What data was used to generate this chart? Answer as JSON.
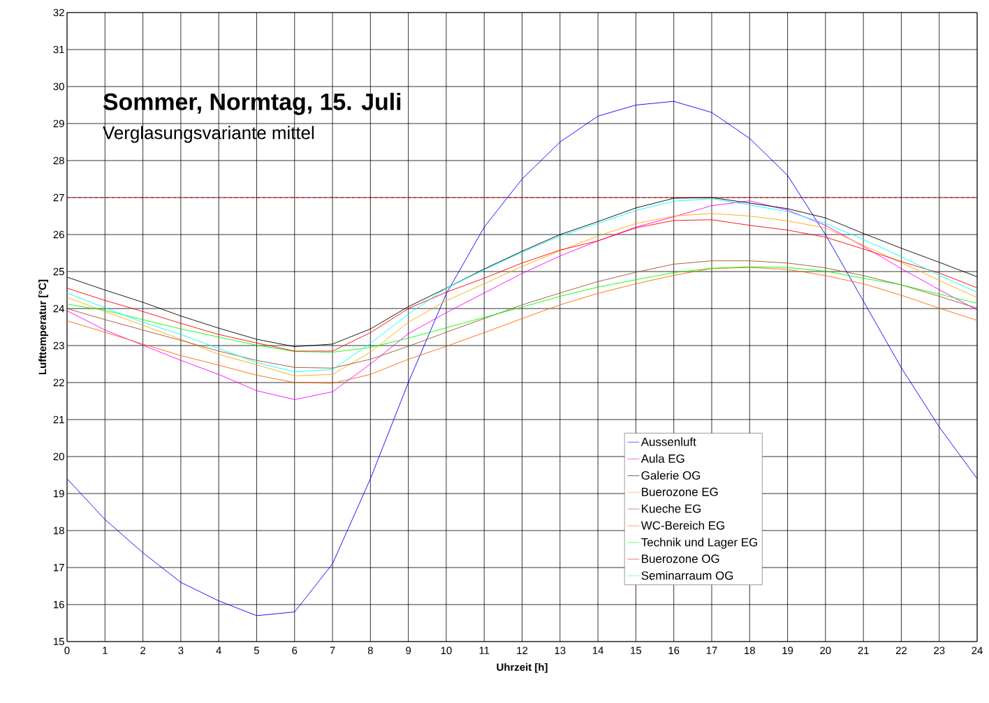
{
  "chart_data": {
    "type": "line",
    "title": "Sommer, Normtag, 15. Juli",
    "subtitle": "Verglasungsvariante mittel",
    "xlabel": "Uhrzeit [h]",
    "ylabel": "Lufttemperatur [°C]",
    "x": [
      0,
      1,
      2,
      3,
      4,
      5,
      6,
      7,
      8,
      9,
      10,
      11,
      12,
      13,
      14,
      15,
      16,
      17,
      18,
      19,
      20,
      21,
      22,
      23,
      24
    ],
    "series": [
      {
        "name": "Aussenluft",
        "color": "#0000ff",
        "values": [
          19.4,
          18.3,
          17.4,
          16.6,
          16.1,
          15.7,
          15.8,
          17.1,
          19.4,
          22.0,
          24.4,
          26.2,
          27.5,
          28.5,
          29.2,
          29.5,
          29.6,
          29.3,
          28.6,
          27.6,
          26.0,
          24.2,
          22.4,
          20.8,
          19.4
        ]
      },
      {
        "name": "Aula EG",
        "color": "#ff00ff",
        "values": [
          23.94,
          23.42,
          23.01,
          22.6,
          22.22,
          21.78,
          21.54,
          21.75,
          22.5,
          23.32,
          23.89,
          24.42,
          24.95,
          25.42,
          25.83,
          26.2,
          26.48,
          26.78,
          26.91,
          26.66,
          26.25,
          25.68,
          25.08,
          24.51,
          23.96
        ]
      },
      {
        "name": "Galerie OG",
        "color": "#000000",
        "values": [
          24.85,
          24.5,
          24.17,
          23.8,
          23.47,
          23.17,
          22.97,
          23.04,
          23.45,
          24.05,
          24.55,
          25.07,
          25.55,
          26.0,
          26.35,
          26.72,
          26.98,
          27.0,
          26.85,
          26.7,
          26.45,
          26.03,
          25.63,
          25.25,
          24.86
        ]
      },
      {
        "name": "Buerozone EG",
        "color": "#ffa500",
        "values": [
          24.3,
          23.92,
          23.55,
          23.17,
          22.76,
          22.48,
          22.18,
          22.22,
          22.82,
          23.63,
          24.21,
          24.67,
          25.14,
          25.56,
          25.96,
          26.3,
          26.5,
          26.57,
          26.5,
          26.37,
          26.18,
          25.71,
          25.24,
          24.76,
          24.3
        ]
      },
      {
        "name": "Kueche EG",
        "color": "#a0522d",
        "values": [
          24.0,
          23.7,
          23.42,
          23.14,
          22.85,
          22.6,
          22.41,
          22.39,
          22.63,
          22.98,
          23.36,
          23.73,
          24.1,
          24.42,
          24.73,
          24.98,
          25.2,
          25.29,
          25.29,
          25.23,
          25.1,
          24.89,
          24.64,
          24.33,
          24.01
        ]
      },
      {
        "name": "WC-Bereich EG",
        "color": "#ff6600",
        "values": [
          23.67,
          23.36,
          23.04,
          22.73,
          22.47,
          22.2,
          22.0,
          21.98,
          22.22,
          22.63,
          22.98,
          23.35,
          23.73,
          24.1,
          24.41,
          24.67,
          24.9,
          25.08,
          25.11,
          25.06,
          24.89,
          24.67,
          24.36,
          24.01,
          23.68
        ]
      },
      {
        "name": "Technik und Lager EG",
        "color": "#00ff00",
        "values": [
          24.12,
          23.95,
          23.7,
          23.45,
          23.23,
          23.01,
          22.84,
          22.82,
          22.95,
          23.2,
          23.48,
          23.76,
          24.04,
          24.33,
          24.58,
          24.78,
          24.97,
          25.09,
          25.13,
          25.11,
          25.01,
          24.82,
          24.64,
          24.39,
          24.14
        ]
      },
      {
        "name": "Buerozone OG",
        "color": "#ff0000",
        "values": [
          24.55,
          24.22,
          23.92,
          23.6,
          23.3,
          23.07,
          22.85,
          22.85,
          23.35,
          24.0,
          24.44,
          24.82,
          25.23,
          25.58,
          25.83,
          26.18,
          26.38,
          26.4,
          26.25,
          26.12,
          25.93,
          25.61,
          25.27,
          24.96,
          24.56
        ]
      },
      {
        "name": "Seminarraum OG",
        "color": "#00ffff",
        "values": [
          24.42,
          24.02,
          23.63,
          23.3,
          22.92,
          22.54,
          22.29,
          22.35,
          23.06,
          23.85,
          24.55,
          25.05,
          25.52,
          25.96,
          26.3,
          26.65,
          26.9,
          26.97,
          26.8,
          26.62,
          26.3,
          25.87,
          25.4,
          24.9,
          24.44
        ]
      }
    ],
    "xlim": [
      0,
      24
    ],
    "ylim": [
      15,
      32
    ],
    "xticks": [
      0,
      1,
      2,
      3,
      4,
      5,
      6,
      7,
      8,
      9,
      10,
      11,
      12,
      13,
      14,
      15,
      16,
      17,
      18,
      19,
      20,
      21,
      22,
      23,
      24
    ],
    "yticks": [
      15,
      16,
      17,
      18,
      19,
      20,
      21,
      22,
      23,
      24,
      25,
      26,
      27,
      28,
      29,
      30,
      31,
      32
    ],
    "ref_lines": [
      {
        "axis": "y",
        "value": 27,
        "color": "#ff0000",
        "line_style": "dashed"
      }
    ],
    "grid": true,
    "legend": "bottom right",
    "marker": "none",
    "line_style": "solid"
  }
}
